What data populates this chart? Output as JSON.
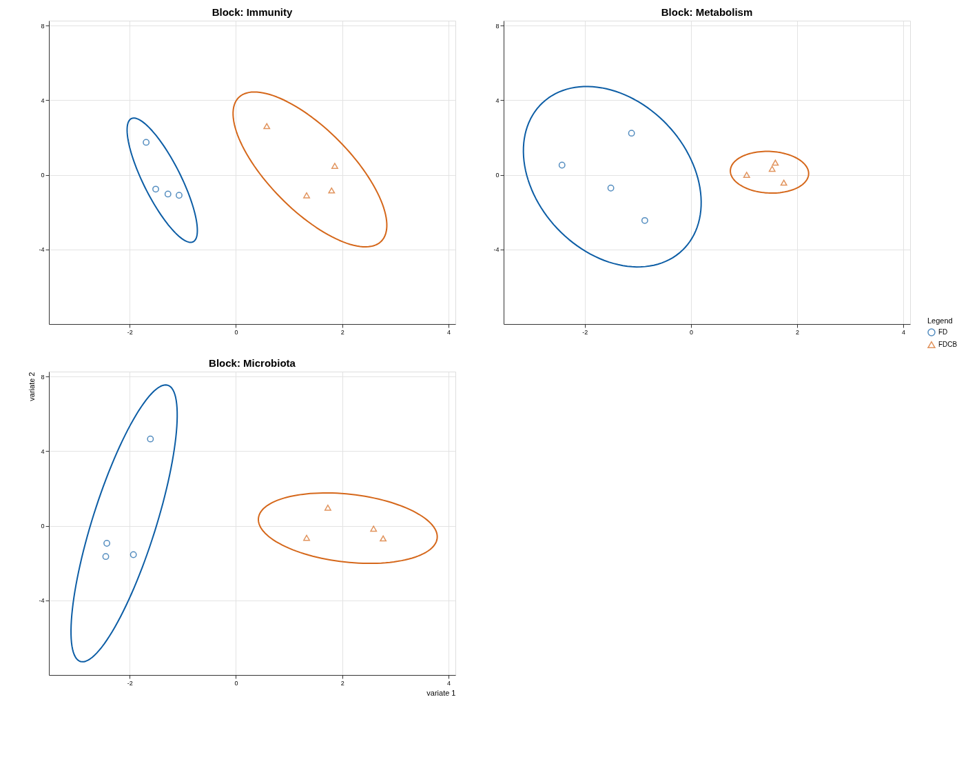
{
  "chart_data": [
    {
      "type": "scatter",
      "title": "Block: Immunity",
      "xlim": [
        -3.52,
        4.13
      ],
      "ylim": [
        -8,
        8.26
      ],
      "xticks": [
        -2,
        0,
        2,
        4
      ],
      "yticks": [
        8,
        4,
        0,
        -4
      ],
      "grid": true,
      "legend": "right",
      "legend_title": "Legend",
      "series": [
        {
          "name": "FD",
          "color": "#0c5da5",
          "marker": "circle",
          "x": [
            -1.69,
            -1.51,
            -1.28,
            -1.07
          ],
          "values": [
            1.74,
            -0.77,
            -1.03,
            -1.1
          ]
        },
        {
          "name": "FDCB",
          "color": "#d5671a",
          "marker": "triangle",
          "x": [
            0.58,
            1.86,
            1.8,
            1.33
          ],
          "values": [
            2.61,
            0.48,
            -0.84,
            -1.1
          ]
        }
      ]
    },
    {
      "type": "scatter",
      "title": "Block: Metabolism",
      "xlim": [
        -3.53,
        4.13
      ],
      "ylim": [
        -8,
        8.26
      ],
      "xticks": [
        -2,
        0,
        2,
        4
      ],
      "yticks": [
        8,
        4,
        0,
        -4
      ],
      "grid": true,
      "series": [
        {
          "color": "#0c5da5",
          "marker": "circle",
          "x": [
            -2.43,
            -1.12,
            -1.51,
            -0.87
          ],
          "values": [
            0.52,
            2.23,
            -0.71,
            -2.45
          ]
        },
        {
          "color": "#d5671a",
          "marker": "triangle",
          "x": [
            1.05,
            1.59,
            1.53,
            1.75
          ],
          "values": [
            0.0,
            0.65,
            0.32,
            -0.42
          ]
        }
      ]
    },
    {
      "type": "scatter",
      "title": "Block: Microbiota",
      "xlabel": "variate 1",
      "ylabel": "variate 2",
      "xlim": [
        -3.52,
        4.13
      ],
      "ylim": [
        -8,
        8.26
      ],
      "xticks": [
        -2,
        0,
        2,
        4
      ],
      "yticks": [
        8,
        4,
        0,
        -4
      ],
      "grid": true,
      "series": [
        {
          "color": "#0c5da5",
          "marker": "circle",
          "x": [
            -1.61,
            -2.43,
            -2.45,
            -1.93
          ],
          "values": [
            4.65,
            -0.94,
            -1.65,
            -1.55
          ]
        },
        {
          "color": "#d5671a",
          "marker": "triangle",
          "x": [
            1.73,
            1.33,
            2.59,
            2.77
          ],
          "values": [
            0.97,
            -0.65,
            -0.16,
            -0.68
          ]
        }
      ]
    }
  ]
}
